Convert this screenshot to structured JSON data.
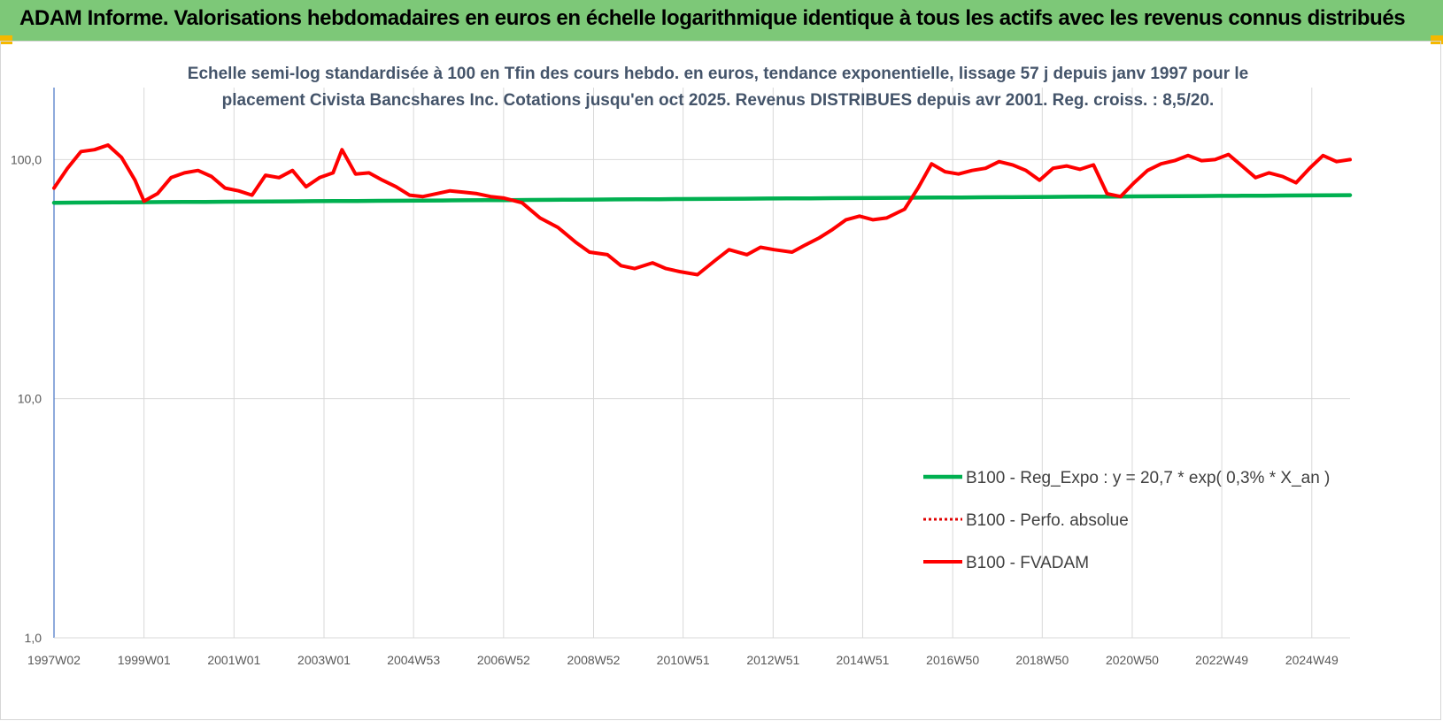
{
  "header": {
    "title": "ADAM Informe. Valorisations hebdomadaires en euros en échelle logarithmique identique à tous les actifs avec les revenus connus distribués"
  },
  "chart_data": {
    "type": "line",
    "title_lines": [
      "Echelle semi-log standardisée à 100 en Tfin des cours hebdo. en euros, tendance exponentielle, lissage 57 j depuis janv 1997 pour le",
      "placement Civista Bancshares Inc. Cotations jusqu'en oct 2025. Revenus DISTRIBUES depuis avr 2001. Reg. croiss. : 8,5/20."
    ],
    "y_scale": "log",
    "ylim": [
      1,
      200
    ],
    "y_ticks": [
      1,
      10,
      100
    ],
    "y_tick_labels": [
      "1,0",
      "10,0",
      "100,0"
    ],
    "xlim": [
      1997.0,
      2025.8
    ],
    "x_ticks": [
      1997.0,
      1999.0,
      2001.0,
      2003.0,
      2004.99,
      2006.99,
      2008.99,
      2010.98,
      2012.98,
      2014.97,
      2016.97,
      2018.96,
      2020.96,
      2022.95,
      2024.95
    ],
    "x_tick_labels": [
      "1997W02",
      "1999W01",
      "2001W01",
      "2003W01",
      "2004W53",
      "2006W52",
      "2008W52",
      "2010W51",
      "2012W51",
      "2014W51",
      "2016W50",
      "2018W50",
      "2020W50",
      "2022W49",
      "2024W49"
    ],
    "grid": {
      "vertical": true,
      "horizontal": true
    },
    "legend_position": "bottom-right",
    "colors": {
      "reg": "#00b050",
      "perfo": "#e00000",
      "fvadam": "#ff0000",
      "grid": "#d9d9d9",
      "axis": "#4472c4"
    },
    "series": [
      {
        "name": "B100 - Reg_Expo : y = 20,7 * exp( 0,3% *  X_an )",
        "style": "solid",
        "x": [
          1997.0,
          2025.8
        ],
        "y": [
          66,
          71
        ]
      },
      {
        "name": "B100 - Perfo. absolue",
        "style": "dotted",
        "x": [],
        "y": []
      },
      {
        "name": "B100 - FVADAM",
        "style": "solid",
        "x": [
          1997.0,
          1997.3,
          1997.6,
          1997.9,
          1998.2,
          1998.5,
          1998.8,
          1999.0,
          1999.3,
          1999.6,
          1999.9,
          2000.2,
          2000.5,
          2000.8,
          2001.1,
          2001.4,
          2001.7,
          2002.0,
          2002.3,
          2002.6,
          2002.9,
          2003.2,
          2003.4,
          2003.7,
          2004.0,
          2004.3,
          2004.6,
          2004.9,
          2005.2,
          2005.5,
          2005.8,
          2006.1,
          2006.4,
          2006.7,
          2007.0,
          2007.4,
          2007.8,
          2008.2,
          2008.6,
          2008.9,
          2009.3,
          2009.6,
          2009.9,
          2010.3,
          2010.6,
          2010.9,
          2011.3,
          2011.7,
          2012.0,
          2012.4,
          2012.7,
          2013.0,
          2013.4,
          2013.7,
          2014.0,
          2014.3,
          2014.6,
          2014.9,
          2015.2,
          2015.5,
          2015.9,
          2016.2,
          2016.5,
          2016.8,
          2017.1,
          2017.4,
          2017.7,
          2018.0,
          2018.3,
          2018.6,
          2018.9,
          2019.2,
          2019.5,
          2019.8,
          2020.1,
          2020.4,
          2020.7,
          2021.0,
          2021.3,
          2021.6,
          2021.9,
          2022.2,
          2022.5,
          2022.8,
          2023.1,
          2023.4,
          2023.7,
          2024.0,
          2024.3,
          2024.6,
          2024.9,
          2025.2,
          2025.5,
          2025.8
        ],
        "y": [
          76,
          92,
          108,
          110,
          115,
          102,
          82,
          67,
          72,
          84,
          88,
          90,
          85,
          76,
          74,
          71,
          86,
          84,
          90,
          77,
          84,
          88,
          110,
          87,
          88,
          82,
          77,
          71,
          70,
          72,
          74,
          73,
          72,
          70,
          69,
          66,
          57,
          52,
          45,
          41,
          40,
          36,
          35,
          37,
          35,
          34,
          33,
          38,
          42,
          40,
          43,
          42,
          41,
          44,
          47,
          51,
          56,
          58,
          56,
          57,
          62,
          76,
          96,
          89,
          87,
          90,
          92,
          98,
          95,
          90,
          82,
          92,
          94,
          91,
          95,
          72,
          70,
          80,
          90,
          96,
          99,
          104,
          99,
          100,
          105,
          94,
          84,
          88,
          85,
          80,
          92,
          104,
          98,
          100
        ]
      }
    ]
  }
}
